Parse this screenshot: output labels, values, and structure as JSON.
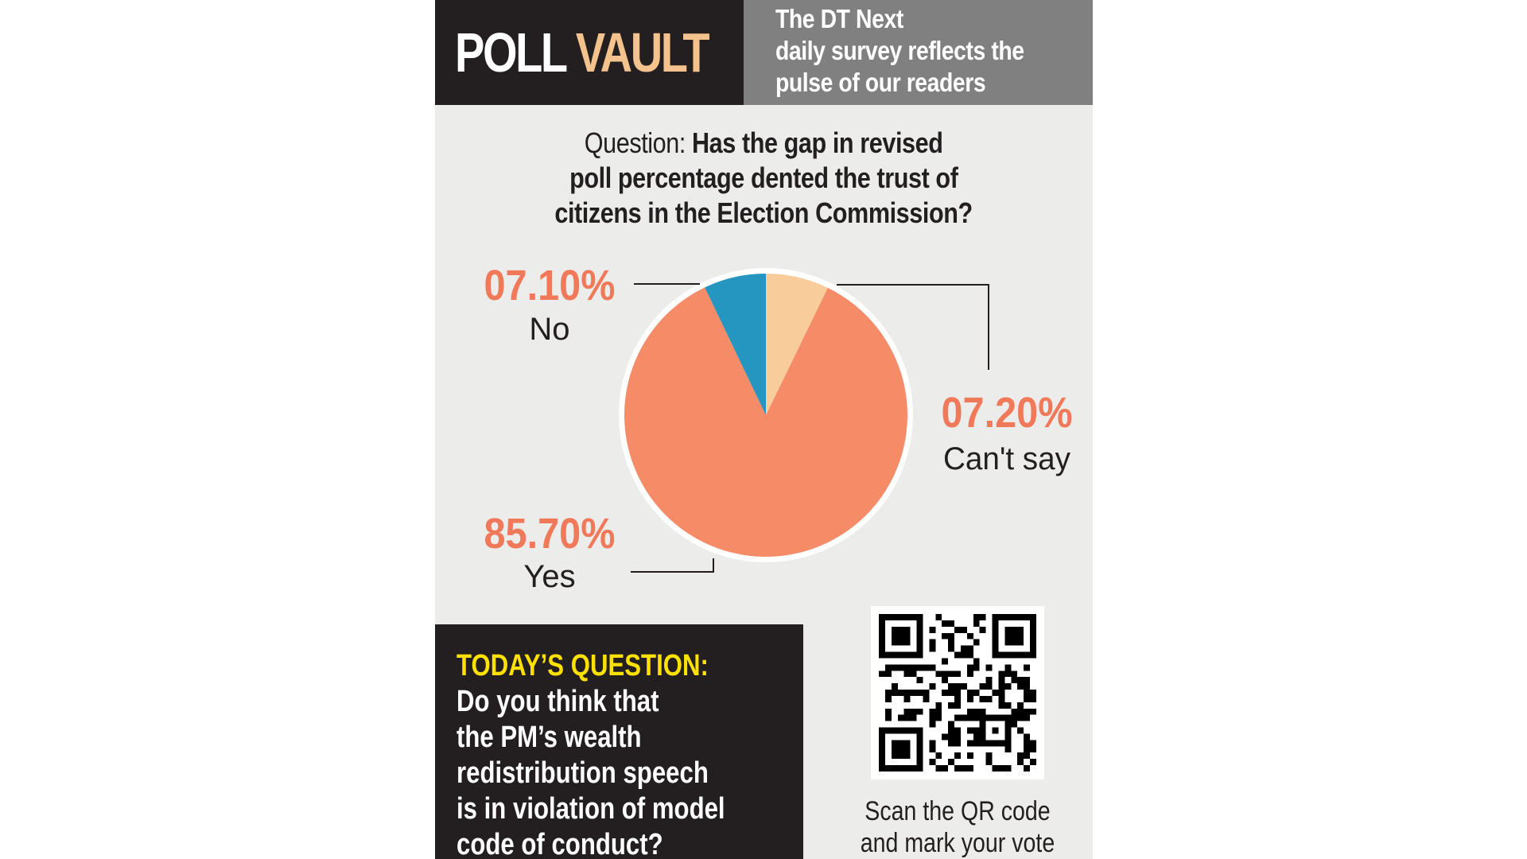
{
  "header": {
    "brand_word1": "POLL",
    "brand_word2": "VAULT",
    "tagline_lines": [
      "The DT Next",
      "daily survey reflects the",
      "pulse of our readers"
    ]
  },
  "question": {
    "label": "Question:",
    "lines": [
      "Has the gap in revised",
      "poll percentage dented the trust of",
      "citizens in the Election Commission?"
    ]
  },
  "chart_data": {
    "type": "pie",
    "title": "",
    "slices": [
      {
        "label": "Can't say",
        "value": 7.2,
        "display": "07.20%",
        "color": "#f8cd9b"
      },
      {
        "label": "Yes",
        "value": 85.7,
        "display": "85.70%",
        "color": "#f58c67"
      },
      {
        "label": "No",
        "value": 7.1,
        "display": "07.10%",
        "color": "#2496c0"
      }
    ],
    "start": "12 o'clock",
    "direction": "clockwise"
  },
  "today": {
    "label": "TODAY’S QUESTION:",
    "lines": [
      "Do you think that",
      "the PM’s wealth",
      "redistribution speech",
      "is in violation of model",
      "code of conduct?"
    ]
  },
  "qr": {
    "icon": "qr-code-icon",
    "caption_lines": [
      "Scan the QR code",
      "and mark your vote"
    ]
  }
}
